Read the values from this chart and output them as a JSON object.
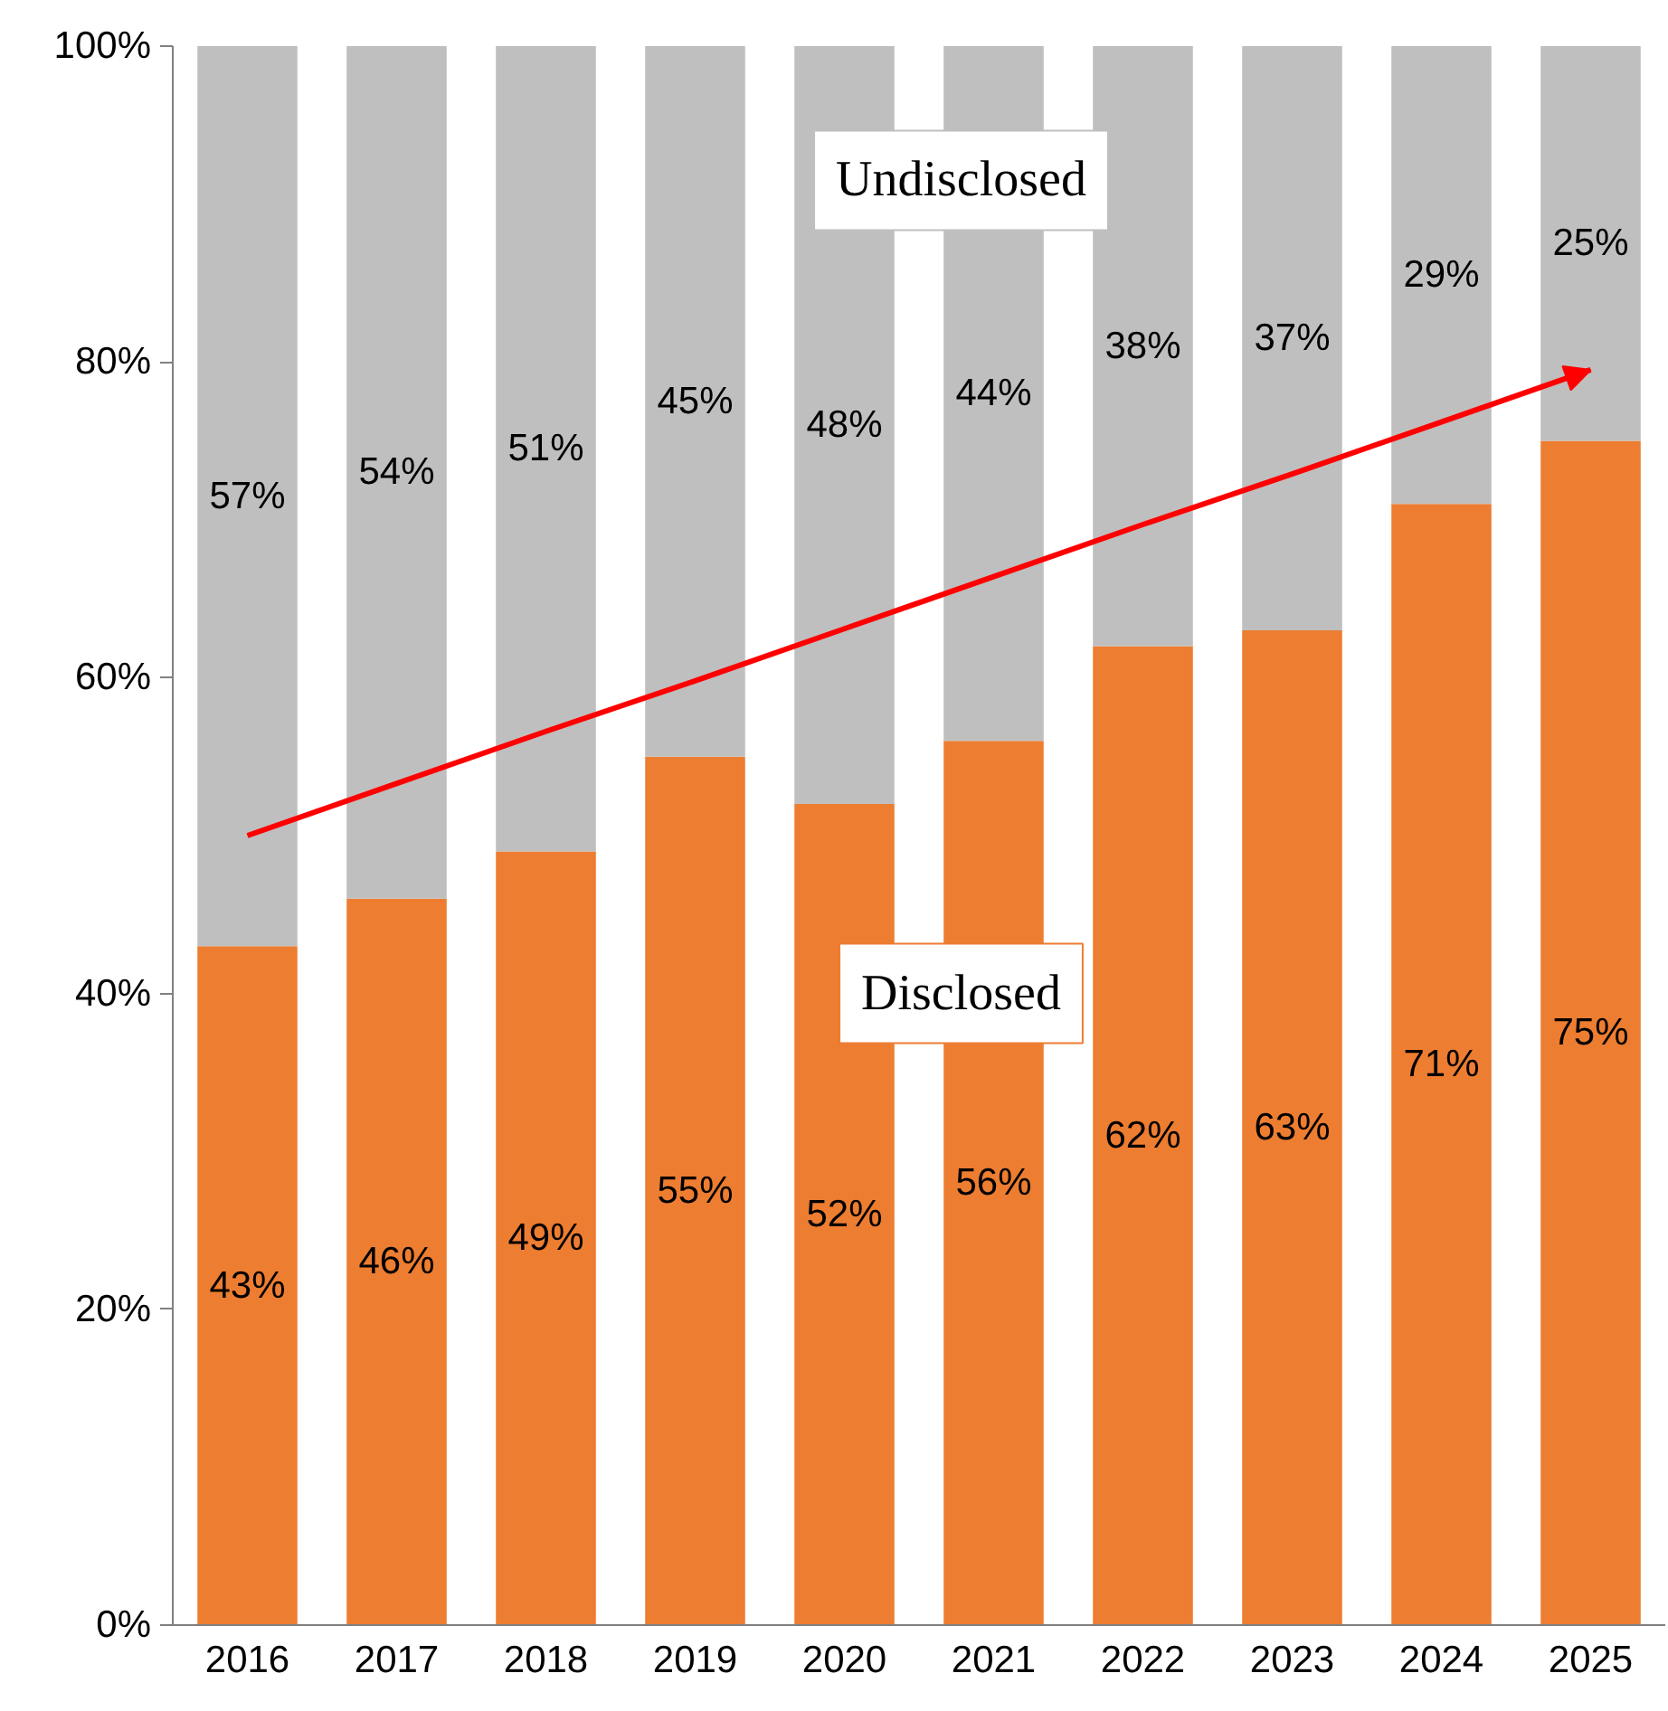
{
  "chart_data": {
    "type": "bar",
    "stacked": true,
    "categories": [
      "2016",
      "2017",
      "2018",
      "2019",
      "2020",
      "2021",
      "2022",
      "2023",
      "2024",
      "2025"
    ],
    "series": [
      {
        "name": "Disclosed",
        "color": "#ed7d31",
        "values": [
          43,
          46,
          49,
          55,
          52,
          56,
          62,
          63,
          71,
          75
        ],
        "value_labels": [
          "43%",
          "46%",
          "49%",
          "55%",
          "52%",
          "56%",
          "62%",
          "63%",
          "71%",
          "75%"
        ]
      },
      {
        "name": "Undisclosed",
        "color": "#bfbfbf",
        "values": [
          57,
          54,
          51,
          45,
          48,
          44,
          38,
          37,
          29,
          25
        ],
        "value_labels": [
          "57%",
          "54%",
          "51%",
          "45%",
          "48%",
          "44%",
          "38%",
          "37%",
          "29%",
          "25%"
        ]
      },
      {
        "type": "line",
        "color": "#ff0000",
        "values": [
          50,
          53.3,
          56.6,
          59.8,
          63.1,
          66.4,
          69.7,
          72.9,
          76.2,
          79.5
        ]
      }
    ],
    "ylim": [
      0,
      100
    ],
    "yticks": [
      {
        "value": 0,
        "label": "0%"
      },
      {
        "value": 20,
        "label": "20%"
      },
      {
        "value": 40,
        "label": "40%"
      },
      {
        "value": 60,
        "label": "60%"
      },
      {
        "value": 80,
        "label": "80%"
      },
      {
        "value": 100,
        "label": "100%"
      }
    ],
    "grid": false
  }
}
